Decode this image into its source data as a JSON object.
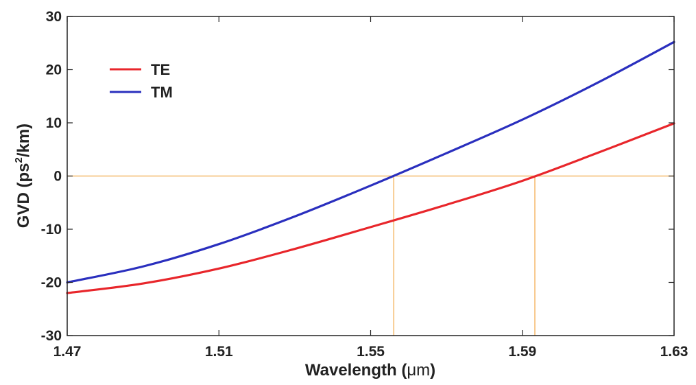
{
  "chart_data": {
    "type": "line",
    "xlabel_prefix": "Wavelength (",
    "xlabel_unit": "μm",
    "xlabel_suffix": ")",
    "ylabel_prefix": "GVD (ps",
    "ylabel_sup": "2",
    "ylabel_suffix": "/km)",
    "xlim": [
      1.47,
      1.63
    ],
    "ylim": [
      -30,
      30
    ],
    "xticks": [
      1.47,
      1.51,
      1.55,
      1.59,
      1.63
    ],
    "xtick_labels": [
      "1.47",
      "1.51",
      "1.55",
      "1.59",
      "1.63"
    ],
    "yticks": [
      -30,
      -20,
      -10,
      0,
      10,
      20,
      30
    ],
    "ytick_labels": [
      "-30",
      "-20",
      "-10",
      "0",
      "10",
      "20",
      "30"
    ],
    "grid": false,
    "legend_position": "top-left",
    "series": [
      {
        "name": "TE",
        "color": "#e8262b",
        "x": [
          1.47,
          1.49,
          1.51,
          1.53,
          1.55,
          1.57,
          1.59,
          1.61,
          1.63
        ],
        "y": [
          -22.0,
          -20.2,
          -17.4,
          -13.7,
          -9.6,
          -5.4,
          -0.9,
          4.4,
          9.9
        ]
      },
      {
        "name": "TM",
        "color": "#2a2fbe",
        "x": [
          1.47,
          1.49,
          1.51,
          1.53,
          1.55,
          1.57,
          1.59,
          1.61,
          1.63
        ],
        "y": [
          -20.0,
          -17.0,
          -12.8,
          -7.6,
          -1.8,
          4.3,
          10.6,
          17.6,
          25.2
        ]
      }
    ],
    "reference_lines": {
      "color": "#f5b96a",
      "horizontal_y": 0,
      "vertical_x": [
        1.5561,
        1.5933
      ]
    }
  }
}
